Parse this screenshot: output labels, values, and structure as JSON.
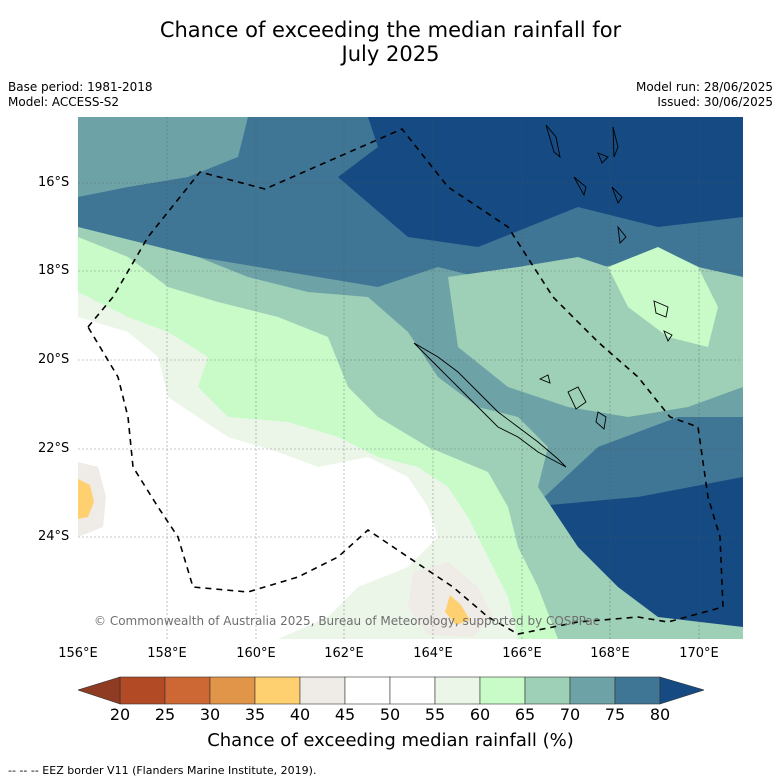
{
  "title_line1": "Chance of exceeding the median rainfall for",
  "title_line2": "July 2025",
  "meta_left": [
    "Base period: 1981-2018",
    "Model: ACCESS-S2"
  ],
  "meta_right": [
    "Model run: 28/06/2025",
    "Issued: 30/06/2025"
  ],
  "lat_labels": [
    "16°S",
    "18°S",
    "20°S",
    "22°S",
    "24°S"
  ],
  "lon_labels": [
    "156°E",
    "158°E",
    "160°E",
    "162°E",
    "164°E",
    "166°E",
    "168°E",
    "170°E"
  ],
  "copyright": "© Commonwealth of Australia 2025, Bureau of Meteorology, supported by COSPPac",
  "colorbar": {
    "ticks": [
      "20",
      "25",
      "30",
      "35",
      "40",
      "45",
      "50",
      "55",
      "60",
      "65",
      "70",
      "75",
      "80"
    ],
    "colors": [
      "#b14a25",
      "#cd6733",
      "#e19548",
      "#fed070",
      "#efebe6",
      "#ffffff",
      "#ffffff",
      "#ebf6e9",
      "#c9fbc9",
      "#9dd0b6",
      "#6da3a6",
      "#3f7595"
    ],
    "low_extend_color": "#8f3a22",
    "high_extend_color": "#154b82",
    "title": "Chance of exceeding median rainfall (%)"
  },
  "footnote": "-- -- -- EEZ border V11 (Flanders Marine Institute, 2019).",
  "map_layers": [
    {
      "name": "zone-gt80",
      "color": "#154b82"
    },
    {
      "name": "zone-75-80",
      "color": "#3f7595"
    },
    {
      "name": "zone-70-75",
      "color": "#6da3a6"
    },
    {
      "name": "zone-65-70",
      "color": "#9dd0b6"
    },
    {
      "name": "zone-60-65",
      "color": "#c9fbc9"
    },
    {
      "name": "zone-55-60",
      "color": "#ebf6e9"
    },
    {
      "name": "zone-45-55",
      "color": "#ffffff"
    },
    {
      "name": "zone-40-45",
      "color": "#efebe6"
    },
    {
      "name": "zone-35-40",
      "color": "#fed070"
    }
  ]
}
